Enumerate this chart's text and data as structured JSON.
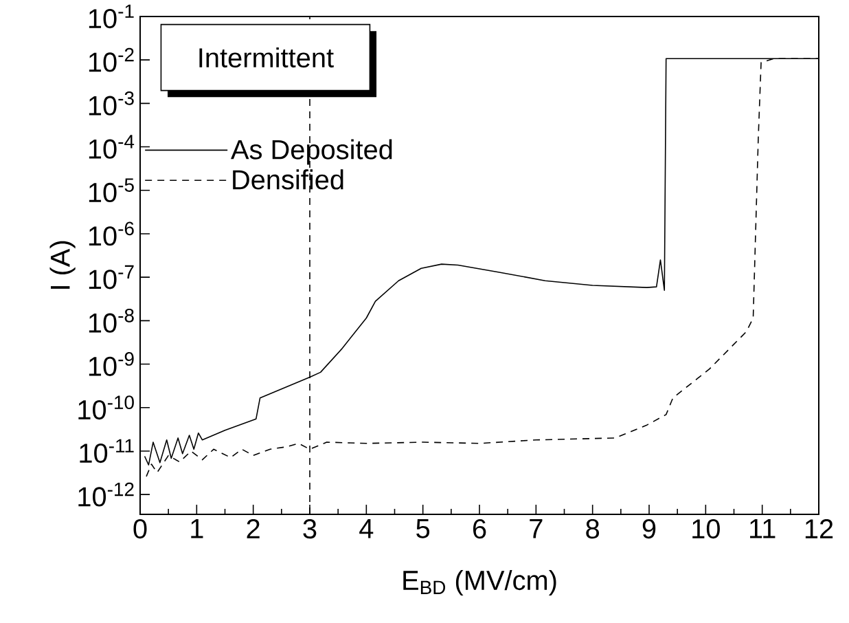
{
  "chart_data": {
    "type": "line",
    "xlabel": "E$_{BD}$ (MV/cm)",
    "ylabel": "I (A)",
    "legend_title": "Intermittent",
    "legend": "top left",
    "log": "y",
    "marker": "none",
    "grid": false,
    "xlim": [
      0,
      12
    ],
    "xticks": [
      0,
      1,
      2,
      3,
      4,
      5,
      6,
      7,
      8,
      9,
      10,
      11,
      12
    ],
    "ylim": [
      3.5e-13,
      0.1
    ],
    "yticks": [
      {
        "value": 0.1,
        "label": "10$^{-1}$"
      },
      {
        "value": 0.01,
        "label": "10$^{-2}$"
      },
      {
        "value": 0.001,
        "label": "10$^{-3}$"
      },
      {
        "value": 0.0001,
        "label": "10$^{-4}$"
      },
      {
        "value": 1e-05,
        "label": "10$^{-5}$"
      },
      {
        "value": 1e-06,
        "label": "10$^{-6}$"
      },
      {
        "value": 1e-07,
        "label": "10$^{-7}$"
      },
      {
        "value": 1e-08,
        "label": "10$^{-8}$"
      },
      {
        "value": 1e-09,
        "label": "10$^{-9}$"
      },
      {
        "value": 1e-10,
        "label": "10$^{-10}$"
      },
      {
        "value": 1e-11,
        "label": "10$^{-11}$"
      },
      {
        "value": 1e-12,
        "label": "10$^{-12}$"
      }
    ],
    "series": [
      {
        "name": "As Deposited",
        "color": "#000000",
        "line_style": "solid",
        "x": [
          0.08,
          0.15,
          0.23,
          0.35,
          0.47,
          0.55,
          0.67,
          0.75,
          0.87,
          0.95,
          1.03,
          1.1,
          1.5,
          2.05,
          2.12,
          3.0,
          3.19,
          3.56,
          4.0,
          4.16,
          4.57,
          4.97,
          5.33,
          5.62,
          6.35,
          7.16,
          8.0,
          8.96,
          9.13,
          9.2,
          9.27,
          9.3,
          12
        ],
        "values": [
          7.6e-12,
          4.8e-12,
          1.6e-11,
          5.4e-12,
          1.8e-11,
          6.8e-12,
          2e-11,
          8.7e-12,
          2.3e-11,
          1.1e-11,
          2.6e-11,
          1.8e-11,
          3e-11,
          5.5e-11,
          1.66e-10,
          5e-10,
          6.5e-10,
          2.2e-09,
          1.15e-08,
          2.8e-08,
          8.3e-08,
          1.6e-07,
          2e-07,
          1.9e-07,
          1.3e-07,
          8.3e-08,
          6.5e-08,
          5.8e-08,
          6e-08,
          2.5e-07,
          5e-08,
          0.0107,
          0.0107
        ]
      },
      {
        "name": "Densified",
        "color": "#000000",
        "line_style": "dashed",
        "x": [
          0.11,
          0.2,
          0.3,
          0.5,
          0.7,
          0.9,
          1.1,
          1.3,
          1.6,
          1.8,
          2.0,
          2.3,
          2.6,
          2.8,
          3.0,
          3.3,
          4,
          5,
          6,
          7,
          8.4,
          8.95,
          9.3,
          9.42,
          10.07,
          10.72,
          10.84,
          10.93,
          10.98,
          11.2,
          12
        ],
        "values": [
          2.6e-12,
          5e-12,
          3.2e-12,
          7.9e-12,
          5.6e-12,
          1e-11,
          6.3e-12,
          1.1e-11,
          7.1e-12,
          1.1e-11,
          7.9e-12,
          1.1e-11,
          1.26e-11,
          1.5e-11,
          1.1e-11,
          1.6e-11,
          1.5e-11,
          1.6e-11,
          1.5e-11,
          1.8e-11,
          2e-11,
          3.9e-11,
          6.9e-11,
          1.66e-10,
          7.8e-10,
          5.6e-09,
          1.15e-08,
          0.000155,
          0.0087,
          0.0107,
          0.0107
        ]
      }
    ],
    "ref_lines": [
      {
        "axis": "x",
        "value": 3,
        "color": "#000000",
        "line_style": "dashed"
      }
    ]
  }
}
